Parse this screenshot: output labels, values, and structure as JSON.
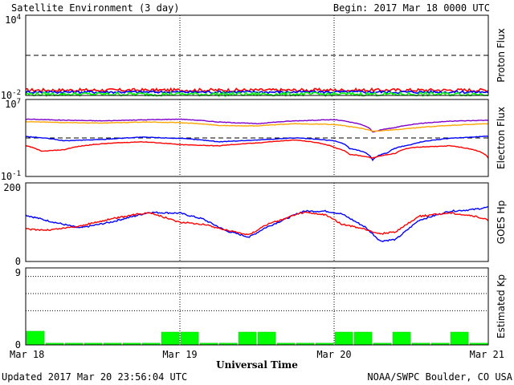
{
  "header": {
    "title": "Satellite Environment (3 day)",
    "begin": "Begin:  2017 Mar 18 0000 UTC"
  },
  "footer": {
    "updated": "Updated 2017 Mar 20 23:56:04 UTC",
    "credit": "NOAA/SWPC Boulder, CO USA"
  },
  "xaxis": {
    "label": "Universal Time",
    "ticks": [
      "Mar 18",
      "Mar 19",
      "Mar 20",
      "Mar 21"
    ]
  },
  "colors": {
    "red": "#ff0000",
    "blue": "#0000ff",
    "green": "#00ff00",
    "purple": "#7f00cc",
    "orange": "#ffa500",
    "kp_bar": "#00ff00",
    "kp_edge": "#00cc00"
  },
  "chart_data": [
    {
      "type": "line",
      "ylabel": "Proton Flux",
      "yscale": "log",
      "ytick_labels": {
        "top": "10",
        "top_exp": "4",
        "bottom": "10",
        "bottom_exp": "-2"
      },
      "ylim": [
        0.01,
        10000
      ],
      "threshold": 10,
      "x_days": [
        0,
        3
      ],
      "series": [
        {
          "color": "red",
          "level": 0.025,
          "noise": 0.12
        },
        {
          "color": "blue",
          "level": 0.018,
          "noise": 0.1
        },
        {
          "color": "green",
          "level": 0.0125,
          "noise": 0.14
        }
      ]
    },
    {
      "type": "line",
      "ylabel": "Electron Flux",
      "yscale": "log",
      "ytick_labels": {
        "top": "10",
        "top_exp": "7",
        "bottom": "10",
        "bottom_exp": "-1"
      },
      "ylim": [
        0.1,
        10000000
      ],
      "threshold": 1000,
      "series": [
        {
          "color": "purple",
          "x": [
            0,
            0.25,
            0.5,
            0.75,
            1.0,
            1.25,
            1.5,
            1.75,
            2.0,
            2.1,
            2.25,
            2.4,
            2.5,
            2.75,
            3.0
          ],
          "y": [
            90000,
            70000,
            60000,
            75000,
            90000,
            45000,
            30000,
            60000,
            80000,
            45000,
            4000,
            12000,
            25000,
            55000,
            70000
          ]
        },
        {
          "color": "orange",
          "x": [
            0,
            0.25,
            0.5,
            0.75,
            1.0,
            1.25,
            1.5,
            1.75,
            2.0,
            2.1,
            2.25,
            2.4,
            2.5,
            2.75,
            3.0
          ],
          "y": [
            50000,
            40000,
            35000,
            45000,
            40000,
            20000,
            18000,
            30000,
            25000,
            15000,
            5000,
            7000,
            10000,
            20000,
            30000
          ]
        },
        {
          "color": "blue",
          "x": [
            0,
            0.25,
            0.5,
            0.75,
            1.0,
            1.25,
            1.5,
            1.75,
            2.0,
            2.1,
            2.25,
            2.35,
            2.5,
            2.75,
            3.0
          ],
          "y": [
            1400,
            500,
            700,
            1200,
            900,
            400,
            600,
            1000,
            500,
            80,
            5,
            30,
            200,
            900,
            1500
          ]
        },
        {
          "color": "red",
          "x": [
            0,
            0.1,
            0.25,
            0.5,
            0.75,
            1.0,
            1.25,
            1.5,
            1.75,
            2.0,
            2.1,
            2.25,
            2.4,
            2.5,
            2.75,
            2.9,
            3.0
          ],
          "y": [
            150,
            40,
            60,
            250,
            400,
            200,
            150,
            300,
            600,
            100,
            20,
            8,
            25,
            100,
            150,
            60,
            8
          ]
        }
      ]
    },
    {
      "type": "line",
      "ylabel": "GOES Hp",
      "ylim": [
        0,
        200
      ],
      "yticks": [
        0,
        200
      ],
      "series": [
        {
          "color": "blue",
          "x": [
            0,
            0.15,
            0.35,
            0.55,
            0.8,
            1.0,
            1.15,
            1.3,
            1.45,
            1.55,
            1.8,
            1.95,
            2.05,
            2.2,
            2.3,
            2.4,
            2.55,
            2.75,
            2.9,
            3.0
          ],
          "y": [
            118,
            103,
            85,
            100,
            125,
            123,
            108,
            78,
            62,
            85,
            128,
            128,
            121,
            88,
            52,
            56,
            105,
            128,
            132,
            138
          ]
        },
        {
          "color": "red",
          "x": [
            0,
            0.15,
            0.35,
            0.55,
            0.8,
            1.0,
            1.15,
            1.3,
            1.45,
            1.55,
            1.8,
            1.95,
            2.05,
            2.2,
            2.3,
            2.4,
            2.55,
            2.75,
            2.9,
            3.0
          ],
          "y": [
            82,
            80,
            90,
            108,
            125,
            100,
            95,
            80,
            68,
            92,
            125,
            118,
            95,
            82,
            70,
            76,
            115,
            124,
            116,
            105
          ]
        }
      ]
    },
    {
      "type": "bar",
      "ylabel": "Estimated Kp",
      "ylim": [
        0,
        9
      ],
      "yticks": [
        0,
        9
      ],
      "gridlines": [
        4,
        6,
        8,
        9
      ],
      "bins_per_day": 8,
      "values": [
        1.6,
        0.2,
        0.2,
        0.2,
        0.2,
        0.2,
        0.2,
        1.5,
        1.5,
        0.2,
        0.2,
        1.5,
        1.5,
        0.2,
        0.2,
        0.2,
        1.5,
        1.5,
        0.2,
        1.5,
        0.2,
        0.2,
        1.5,
        0.2
      ]
    }
  ]
}
